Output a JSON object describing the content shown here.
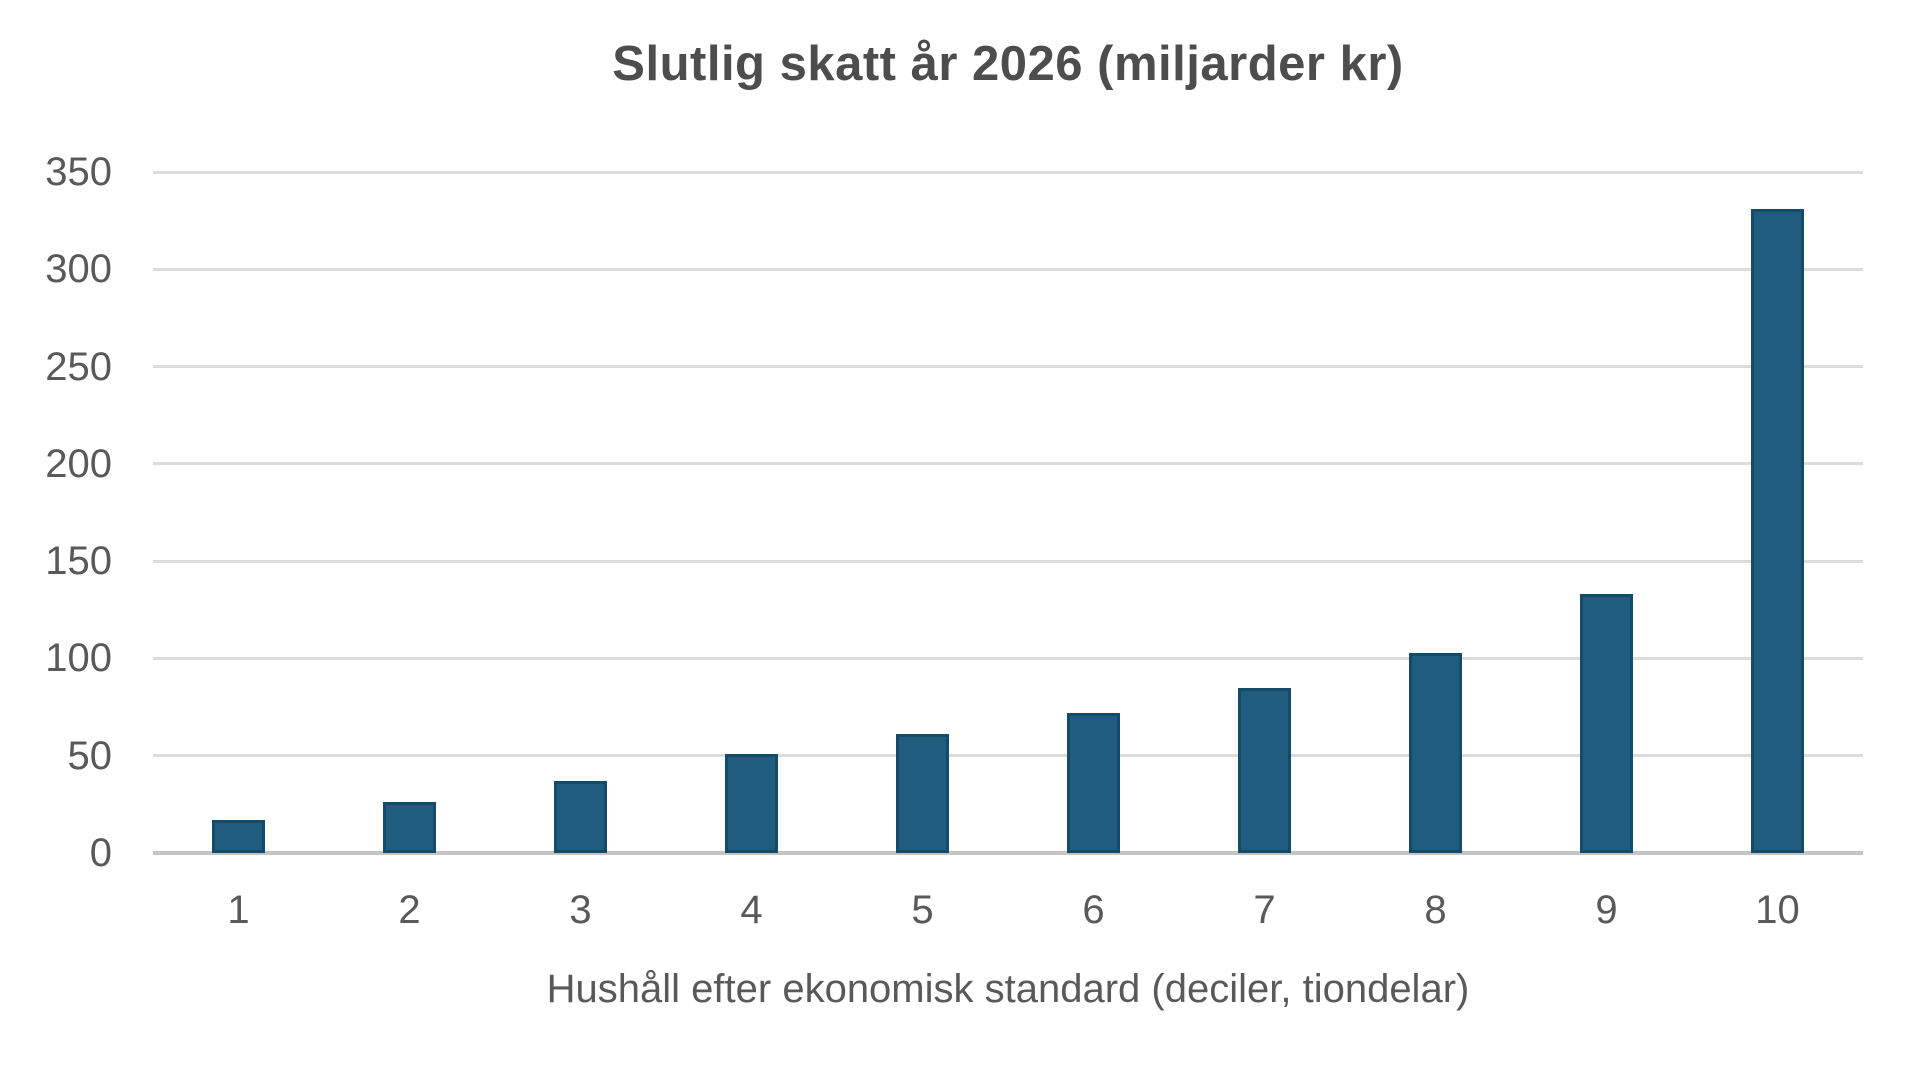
{
  "chart_data": {
    "type": "bar",
    "title": "Slutlig skatt år 2026 (miljarder kr)",
    "xlabel": "Hushåll efter ekonomisk standard (deciler, tiondelar)",
    "ylabel": "",
    "categories": [
      "1",
      "2",
      "3",
      "4",
      "5",
      "6",
      "7",
      "8",
      "9",
      "10"
    ],
    "values": [
      17,
      26,
      37,
      51,
      61,
      72,
      85,
      103,
      133,
      331
    ],
    "ylim": [
      0,
      350
    ],
    "ytick_step": 50,
    "grid": "horizontal gridlines only",
    "legend_position": "none",
    "colors": {
      "bar_fill": "#1F5C7E",
      "bar_border": "#134B68",
      "gridline": "#DCDCDC",
      "axis_line": "#C4C4C4",
      "title_text": "#4D4D4D",
      "label_text": "#595959",
      "background": "#FFFFFF"
    }
  }
}
